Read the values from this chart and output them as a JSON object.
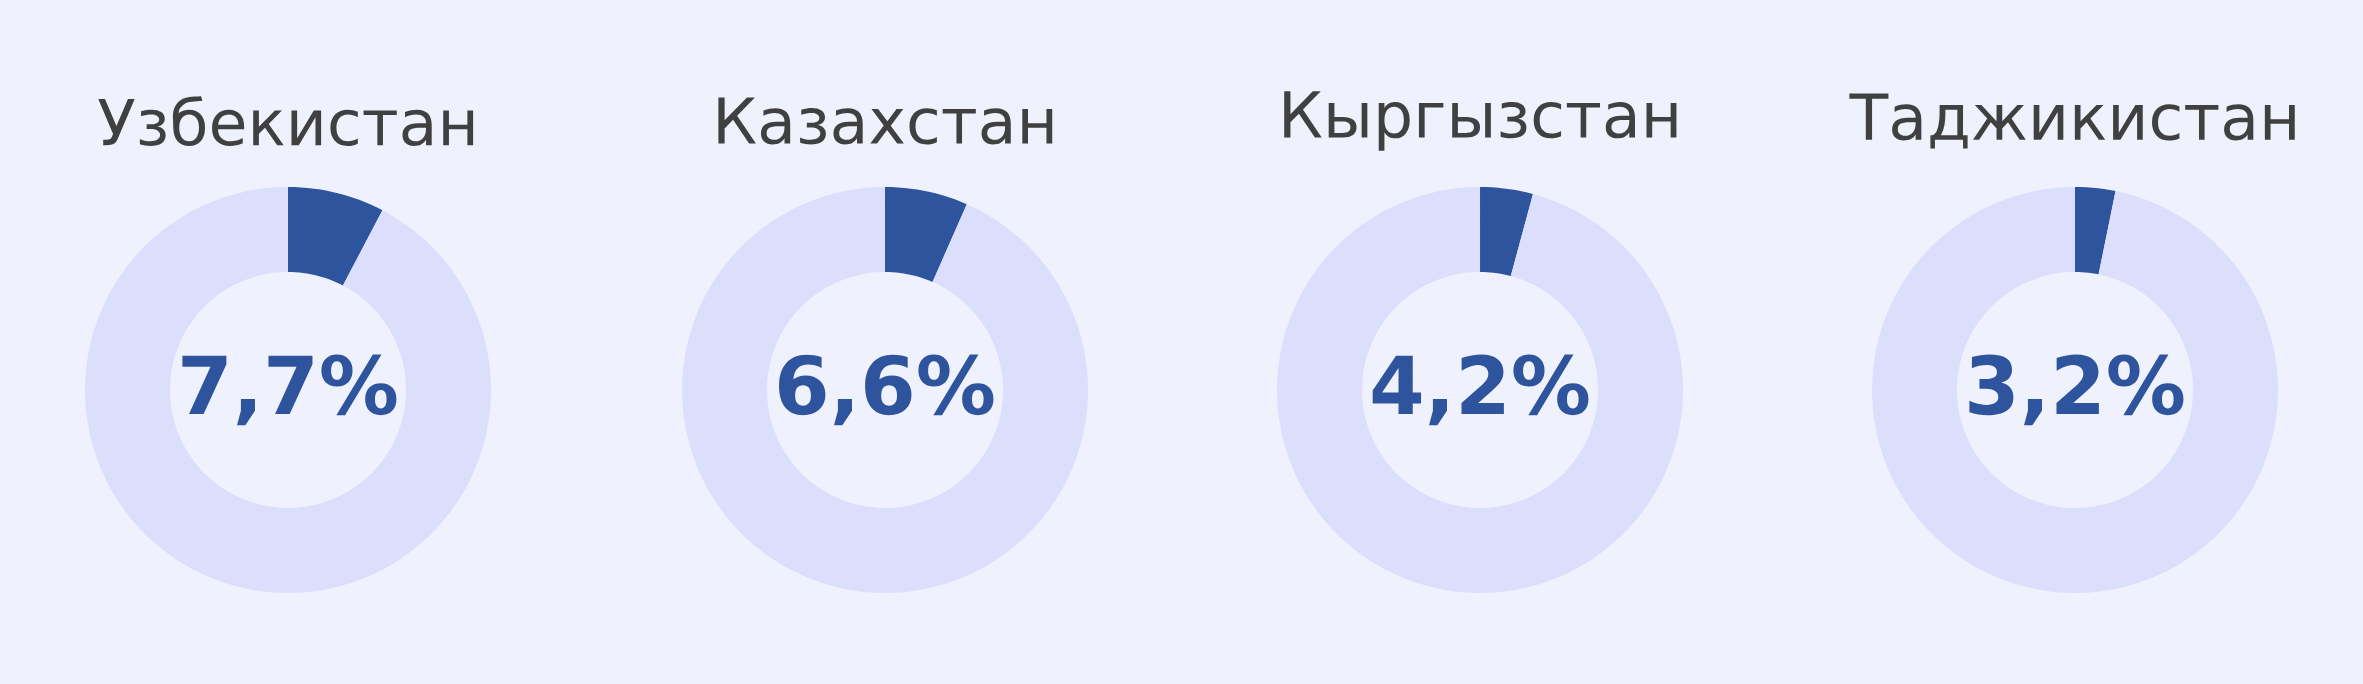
{
  "chart_data": [
    {
      "type": "donut",
      "title": "Узбекистан",
      "categories": [
        null,
        null
      ],
      "values": [
        7.7,
        92.3
      ],
      "colors": [
        "#2f549e",
        "#dbdffc"
      ],
      "annotations": [
        "7,7%"
      ]
    },
    {
      "type": "donut",
      "title": "Казахстан",
      "categories": [
        null,
        null
      ],
      "values": [
        6.6,
        93.4
      ],
      "colors": [
        "#2f549e",
        "#dbdffc"
      ],
      "annotations": [
        "6,6%"
      ]
    },
    {
      "type": "donut",
      "title": "Кыргызстан",
      "categories": [
        null,
        null
      ],
      "values": [
        4.2,
        95.8
      ],
      "colors": [
        "#2f549e",
        "#dbdffc"
      ],
      "annotations": [
        "4,2%"
      ]
    },
    {
      "type": "donut",
      "title": "Таджикистан",
      "categories": [
        null,
        null
      ],
      "values": [
        3.2,
        96.8
      ],
      "colors": [
        "#2f549e",
        "#dbdffc"
      ],
      "annotations": [
        "3,2%"
      ]
    }
  ]
}
